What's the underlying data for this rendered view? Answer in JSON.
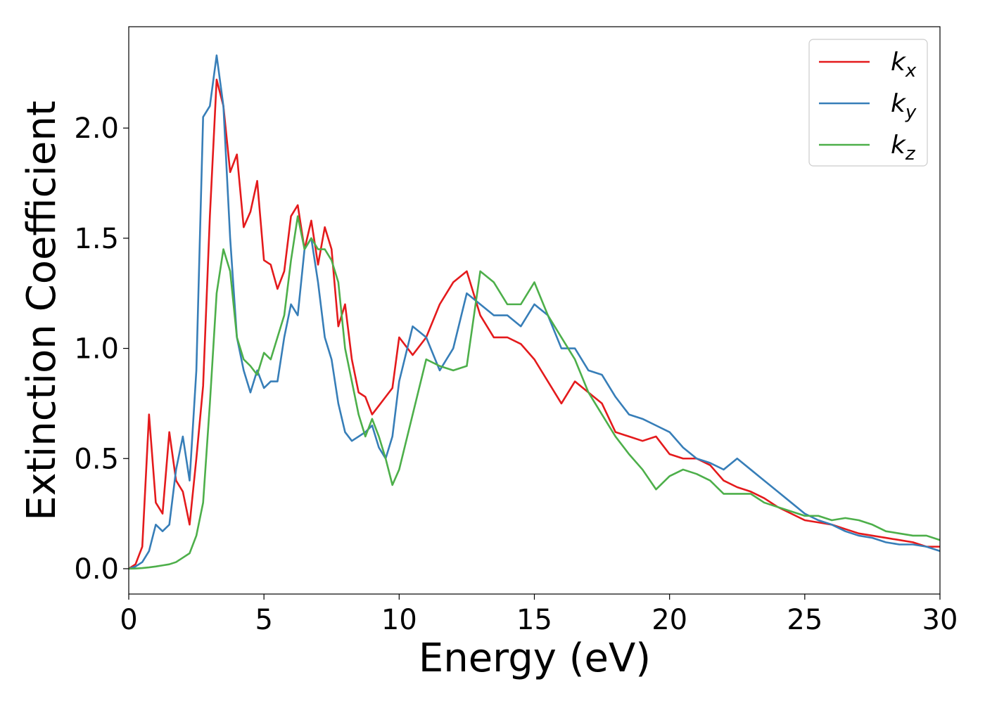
{
  "chart_data": {
    "type": "line",
    "xlabel": "Energy (eV)",
    "ylabel": "Extinction Coefficient",
    "x": [
      0,
      0.25,
      0.5,
      0.75,
      1,
      1.25,
      1.5,
      1.75,
      2,
      2.25,
      2.5,
      2.75,
      3,
      3.25,
      3.5,
      3.75,
      4,
      4.25,
      4.5,
      4.75,
      5,
      5.25,
      5.5,
      5.75,
      6,
      6.25,
      6.5,
      6.75,
      7,
      7.25,
      7.5,
      7.75,
      8,
      8.25,
      8.5,
      8.75,
      9,
      9.25,
      9.5,
      9.75,
      10,
      10.5,
      11,
      11.5,
      12,
      12.5,
      13,
      13.5,
      14,
      14.5,
      15,
      15.5,
      16,
      16.5,
      17,
      17.5,
      18,
      18.5,
      19,
      19.5,
      20,
      20.5,
      21,
      21.5,
      22,
      22.5,
      23,
      23.5,
      24,
      24.5,
      25,
      25.5,
      26,
      26.5,
      27,
      27.5,
      28,
      28.5,
      29,
      29.5,
      30
    ],
    "series": [
      {
        "name": "kx",
        "color": "#e41a1c",
        "values": [
          0,
          0.02,
          0.1,
          0.7,
          0.3,
          0.25,
          0.62,
          0.4,
          0.35,
          0.2,
          0.5,
          0.83,
          1.6,
          2.22,
          2.1,
          1.8,
          1.88,
          1.55,
          1.62,
          1.76,
          1.4,
          1.38,
          1.27,
          1.35,
          1.6,
          1.65,
          1.45,
          1.58,
          1.38,
          1.55,
          1.45,
          1.1,
          1.2,
          0.95,
          0.8,
          0.78,
          0.7,
          0.74,
          0.78,
          0.82,
          1.05,
          0.97,
          1.05,
          1.2,
          1.3,
          1.35,
          1.15,
          1.05,
          1.05,
          1.02,
          0.95,
          0.85,
          0.75,
          0.85,
          0.8,
          0.75,
          0.62,
          0.6,
          0.58,
          0.6,
          0.52,
          0.5,
          0.5,
          0.47,
          0.4,
          0.37,
          0.35,
          0.32,
          0.28,
          0.25,
          0.22,
          0.21,
          0.2,
          0.18,
          0.16,
          0.15,
          0.14,
          0.13,
          0.12,
          0.1,
          0.1
        ]
      },
      {
        "name": "ky",
        "color": "#377eb8",
        "values": [
          0,
          0.01,
          0.03,
          0.08,
          0.2,
          0.17,
          0.2,
          0.45,
          0.6,
          0.4,
          0.9,
          2.05,
          2.1,
          2.33,
          2.1,
          1.5,
          1.05,
          0.9,
          0.8,
          0.9,
          0.82,
          0.85,
          0.85,
          1.05,
          1.2,
          1.15,
          1.45,
          1.5,
          1.3,
          1.05,
          0.95,
          0.75,
          0.62,
          0.58,
          0.6,
          0.62,
          0.65,
          0.55,
          0.5,
          0.6,
          0.85,
          1.1,
          1.05,
          0.9,
          1.0,
          1.25,
          1.2,
          1.15,
          1.15,
          1.1,
          1.2,
          1.15,
          1.0,
          1.0,
          0.9,
          0.88,
          0.78,
          0.7,
          0.68,
          0.65,
          0.62,
          0.55,
          0.5,
          0.48,
          0.45,
          0.5,
          0.45,
          0.4,
          0.35,
          0.3,
          0.25,
          0.22,
          0.2,
          0.17,
          0.15,
          0.14,
          0.12,
          0.11,
          0.11,
          0.1,
          0.08
        ]
      },
      {
        "name": "kz",
        "color": "#4daf4a",
        "values": [
          0,
          0.001,
          0.003,
          0.006,
          0.01,
          0.015,
          0.02,
          0.03,
          0.05,
          0.07,
          0.15,
          0.3,
          0.75,
          1.25,
          1.45,
          1.35,
          1.05,
          0.95,
          0.92,
          0.88,
          0.98,
          0.95,
          1.05,
          1.15,
          1.4,
          1.6,
          1.45,
          1.5,
          1.45,
          1.45,
          1.4,
          1.3,
          1.0,
          0.85,
          0.7,
          0.6,
          0.68,
          0.6,
          0.5,
          0.38,
          0.45,
          0.7,
          0.95,
          0.92,
          0.9,
          0.92,
          1.35,
          1.3,
          1.2,
          1.2,
          1.3,
          1.15,
          1.05,
          0.95,
          0.8,
          0.7,
          0.6,
          0.52,
          0.45,
          0.36,
          0.42,
          0.45,
          0.43,
          0.4,
          0.34,
          0.34,
          0.34,
          0.3,
          0.28,
          0.26,
          0.24,
          0.24,
          0.22,
          0.23,
          0.22,
          0.2,
          0.17,
          0.16,
          0.15,
          0.15,
          0.13
        ]
      }
    ],
    "xlim": [
      0,
      30
    ],
    "xticks": [
      0,
      5,
      10,
      15,
      20,
      25,
      30
    ],
    "ylim": [
      -0.115,
      2.46
    ],
    "yticks": [
      {
        "value": 0,
        "label": "0.0"
      },
      0.5,
      {
        "value": 1,
        "label": "1.0"
      },
      1.5,
      {
        "value": 2,
        "label": "2.0"
      }
    ],
    "grid": false,
    "legend": "upper right"
  }
}
